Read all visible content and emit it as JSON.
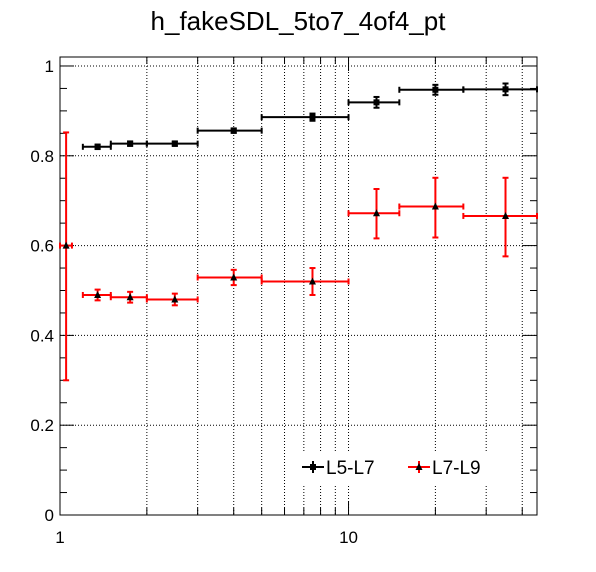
{
  "chart_data": {
    "type": "scatter",
    "title": "h_fakeSDL_5to7_4of4_pt",
    "xlabel": "",
    "ylabel": "",
    "xscale": "log",
    "xlim": [
      1,
      45
    ],
    "ylim": [
      0,
      1.02
    ],
    "x_tick_labels": [
      {
        "value": 1,
        "label": "1"
      },
      {
        "value": 10,
        "label": "10"
      }
    ],
    "y_tick_labels": [
      {
        "value": 0,
        "label": "0"
      },
      {
        "value": 0.2,
        "label": "0.2"
      },
      {
        "value": 0.4,
        "label": "0.4"
      },
      {
        "value": 0.6,
        "label": "0.6"
      },
      {
        "value": 0.8,
        "label": "0.8"
      },
      {
        "value": 1,
        "label": "1"
      }
    ],
    "grid": true,
    "legend_position": "bottom-right",
    "series": [
      {
        "name": "L5-L7",
        "color": "#000000",
        "marker": "square",
        "points": [
          {
            "x": 1.35,
            "xlo": 1.2,
            "xhi": 1.5,
            "y": 0.82,
            "ylo": 0.815,
            "yhi": 0.825
          },
          {
            "x": 1.75,
            "xlo": 1.5,
            "xhi": 2.0,
            "y": 0.827,
            "ylo": 0.822,
            "yhi": 0.832
          },
          {
            "x": 2.5,
            "xlo": 2.0,
            "xhi": 3.0,
            "y": 0.827,
            "ylo": 0.822,
            "yhi": 0.832
          },
          {
            "x": 4.0,
            "xlo": 3.0,
            "xhi": 5.0,
            "y": 0.856,
            "ylo": 0.851,
            "yhi": 0.861
          },
          {
            "x": 7.5,
            "xlo": 5.0,
            "xhi": 10.0,
            "y": 0.886,
            "ylo": 0.878,
            "yhi": 0.894
          },
          {
            "x": 12.5,
            "xlo": 10.0,
            "xhi": 15.0,
            "y": 0.919,
            "ylo": 0.907,
            "yhi": 0.931
          },
          {
            "x": 20.0,
            "xlo": 15.0,
            "xhi": 25.0,
            "y": 0.947,
            "ylo": 0.936,
            "yhi": 0.958
          },
          {
            "x": 35.0,
            "xlo": 25.0,
            "xhi": 45.0,
            "y": 0.948,
            "ylo": 0.935,
            "yhi": 0.961
          }
        ]
      },
      {
        "name": "L7-L9",
        "color": "#ff0000",
        "marker": "triangle",
        "points": [
          {
            "x": 1.05,
            "xlo": 1.0,
            "xhi": 1.1,
            "y": 0.6,
            "ylo": 0.3,
            "yhi": 0.852
          },
          {
            "x": 1.35,
            "xlo": 1.2,
            "xhi": 1.5,
            "y": 0.49,
            "ylo": 0.478,
            "yhi": 0.502
          },
          {
            "x": 1.75,
            "xlo": 1.5,
            "xhi": 2.0,
            "y": 0.485,
            "ylo": 0.473,
            "yhi": 0.497
          },
          {
            "x": 2.5,
            "xlo": 2.0,
            "xhi": 3.0,
            "y": 0.48,
            "ylo": 0.467,
            "yhi": 0.493
          },
          {
            "x": 4.0,
            "xlo": 3.0,
            "xhi": 5.0,
            "y": 0.529,
            "ylo": 0.512,
            "yhi": 0.546
          },
          {
            "x": 7.5,
            "xlo": 5.0,
            "xhi": 10.0,
            "y": 0.52,
            "ylo": 0.49,
            "yhi": 0.55
          },
          {
            "x": 12.5,
            "xlo": 10.0,
            "xhi": 15.0,
            "y": 0.672,
            "ylo": 0.616,
            "yhi": 0.726
          },
          {
            "x": 20.0,
            "xlo": 15.0,
            "xhi": 25.0,
            "y": 0.687,
            "ylo": 0.618,
            "yhi": 0.751
          },
          {
            "x": 35.0,
            "xlo": 25.0,
            "xhi": 45.0,
            "y": 0.666,
            "ylo": 0.576,
            "yhi": 0.751
          }
        ]
      }
    ]
  }
}
